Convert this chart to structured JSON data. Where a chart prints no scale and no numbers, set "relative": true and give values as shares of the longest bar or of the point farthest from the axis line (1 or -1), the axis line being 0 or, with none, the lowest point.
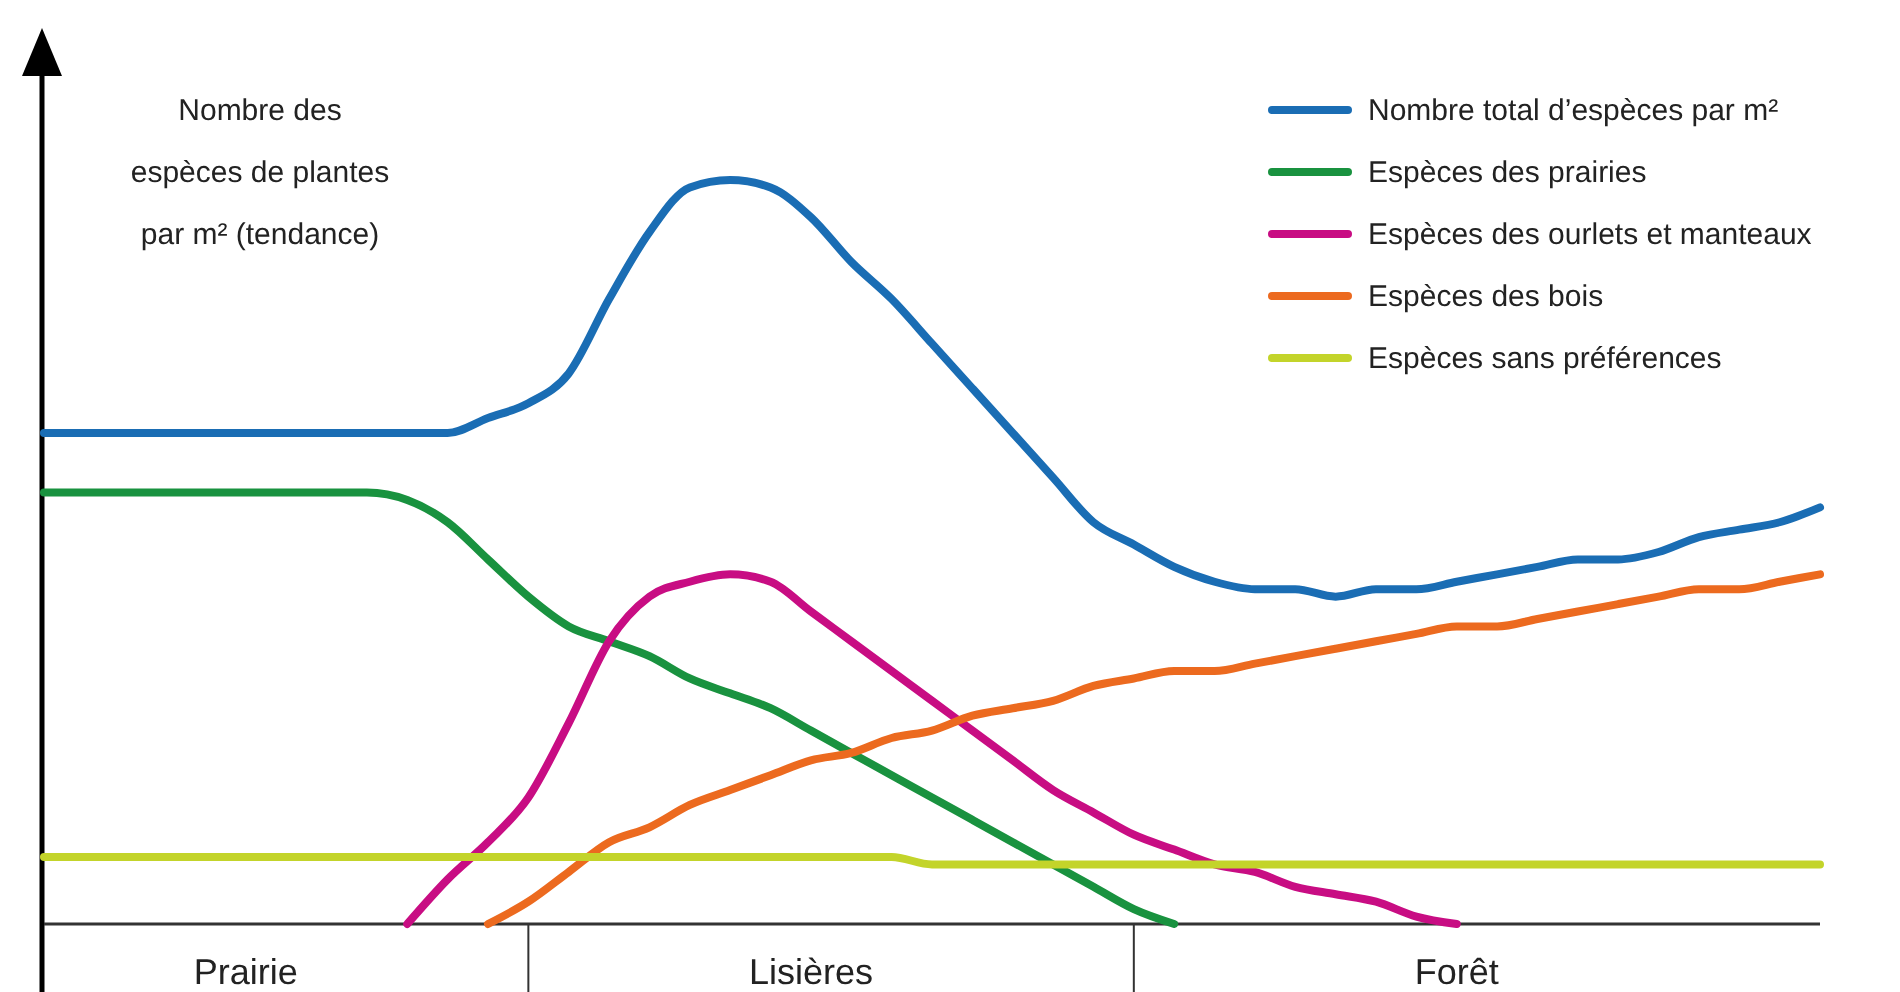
{
  "chart_data": {
    "type": "line",
    "relative": true,
    "ylabel": "Nombre des\nespèces de plantes\npar m² (tendance)",
    "legend": "top right",
    "marker": "none",
    "line_style": "solid",
    "categories": [
      null,
      null,
      null,
      null,
      null,
      "Prairie",
      null,
      null,
      null,
      null,
      null,
      null,
      null,
      null,
      null,
      null,
      null,
      null,
      null,
      "Lisières",
      null,
      null,
      null,
      null,
      null,
      null,
      null,
      null,
      null,
      null,
      null,
      null,
      null,
      null,
      null,
      "Forêt",
      null,
      null,
      null,
      null,
      null,
      null,
      null,
      null,
      null
    ],
    "series": [
      {
        "name": "Nombre total d’espèces par m²",
        "color": "#1a6db4",
        "values": [
          0.66,
          0.66,
          0.66,
          0.66,
          0.66,
          0.66,
          0.66,
          0.66,
          0.66,
          0.66,
          0.66,
          0.68,
          0.7,
          0.74,
          0.84,
          0.93,
          0.99,
          1,
          0.99,
          0.95,
          0.89,
          0.84,
          0.78,
          0.72,
          0.66,
          0.6,
          0.54,
          0.51,
          0.48,
          0.46,
          0.45,
          0.45,
          0.44,
          0.45,
          0.45,
          0.46,
          0.47,
          0.48,
          0.49,
          0.49,
          0.5,
          0.52,
          0.53,
          0.54,
          0.56
        ]
      },
      {
        "name": "Espèces des prairies",
        "color": "#19923f",
        "values": [
          0.58,
          0.58,
          0.58,
          0.58,
          0.58,
          0.58,
          0.58,
          0.58,
          0.58,
          0.57,
          0.54,
          0.49,
          0.44,
          0.4,
          0.38,
          0.36,
          0.33,
          0.31,
          0.29,
          0.26,
          0.23,
          0.2,
          0.17,
          0.14,
          0.11,
          0.08,
          0.05,
          0.02,
          0,
          null,
          null,
          null,
          null,
          null,
          null,
          null,
          null,
          null,
          null,
          null,
          null,
          null,
          null,
          null,
          null
        ]
      },
      {
        "name": "Espèces des ourlets et manteaux",
        "color": "#c80d83",
        "values": [
          null,
          null,
          null,
          null,
          null,
          null,
          null,
          null,
          null,
          0,
          0.06,
          0.11,
          0.17,
          0.27,
          0.38,
          0.44,
          0.46,
          0.47,
          0.46,
          0.42,
          0.38,
          0.34,
          0.3,
          0.26,
          0.22,
          0.18,
          0.15,
          0.12,
          0.1,
          0.08,
          0.07,
          0.05,
          0.04,
          0.03,
          0.01,
          0,
          null,
          null,
          null,
          null,
          null,
          null,
          null,
          null,
          null
        ]
      },
      {
        "name": "Espèces des bois",
        "color": "#ec6a1f",
        "values": [
          null,
          null,
          null,
          null,
          null,
          null,
          null,
          null,
          null,
          null,
          null,
          0,
          0.03,
          0.07,
          0.11,
          0.13,
          0.16,
          0.18,
          0.2,
          0.22,
          0.23,
          0.25,
          0.26,
          0.28,
          0.29,
          0.3,
          0.32,
          0.33,
          0.34,
          0.34,
          0.35,
          0.36,
          0.37,
          0.38,
          0.39,
          0.4,
          0.4,
          0.41,
          0.42,
          0.43,
          0.44,
          0.45,
          0.45,
          0.46,
          0.47
        ]
      },
      {
        "name": "Espèces sans préférences",
        "color": "#c3d42a",
        "values": [
          0.09,
          0.09,
          0.09,
          0.09,
          0.09,
          0.09,
          0.09,
          0.09,
          0.09,
          0.09,
          0.09,
          0.09,
          0.09,
          0.09,
          0.09,
          0.09,
          0.09,
          0.09,
          0.09,
          0.09,
          0.09,
          0.09,
          0.08,
          0.08,
          0.08,
          0.08,
          0.08,
          0.08,
          0.08,
          0.08,
          0.08,
          0.08,
          0.08,
          0.08,
          0.08,
          0.08,
          0.08,
          0.08,
          0.08,
          0.08,
          0.08,
          0.08,
          0.08,
          0.08,
          0.08
        ]
      }
    ]
  }
}
